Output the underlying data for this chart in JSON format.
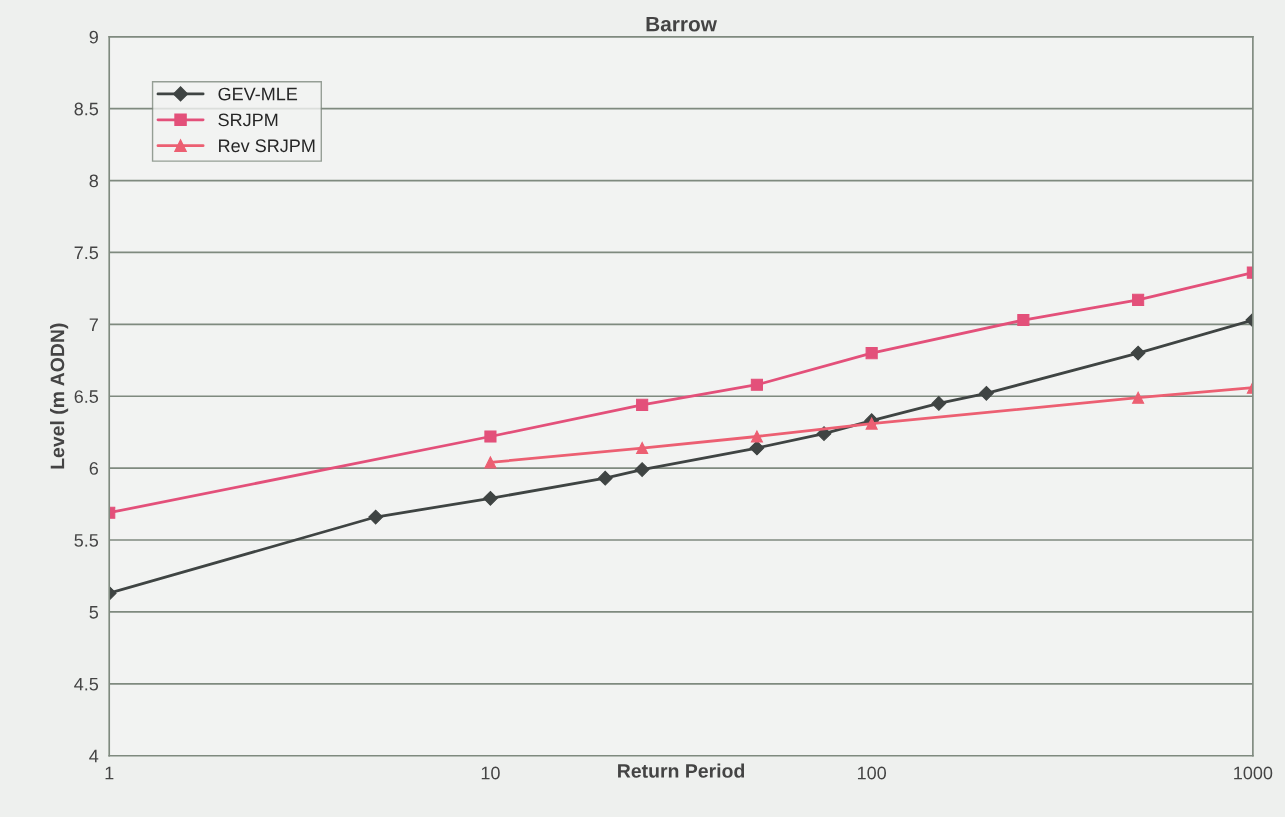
{
  "chart_data": {
    "type": "line",
    "title": "Barrow",
    "xlabel": "Return Period",
    "ylabel": "Level (m AODN)",
    "log": "x",
    "xlim": [
      1,
      1000
    ],
    "xticks": [
      1,
      10,
      100,
      1000
    ],
    "ylim": [
      4,
      9
    ],
    "yticks": [
      4,
      4.5,
      5,
      5.5,
      6,
      6.5,
      7,
      7.5,
      8,
      8.5,
      9
    ],
    "grid": "y",
    "legend": "top left",
    "line_style": "solid",
    "series": [
      {
        "name": "GEV-MLE",
        "color": "#3f4443",
        "marker": "diamond",
        "x": [
          1,
          5,
          10,
          20,
          25,
          50,
          75,
          100,
          150,
          200,
          500,
          1000
        ],
        "values": [
          5.13,
          5.66,
          5.79,
          5.93,
          5.99,
          6.14,
          6.24,
          6.33,
          6.45,
          6.52,
          6.8,
          7.03
        ]
      },
      {
        "name": "SRJPM",
        "color": "#e3507a",
        "marker": "square",
        "x": [
          1,
          10,
          25,
          50,
          100,
          250,
          500,
          1000
        ],
        "values": [
          5.69,
          6.22,
          6.44,
          6.58,
          6.8,
          7.03,
          7.17,
          7.36
        ]
      },
      {
        "name": "Rev SRJPM",
        "color": "#ec5f72",
        "marker": "triangle",
        "x": [
          10,
          25,
          50,
          100,
          500,
          1000
        ],
        "values": [
          6.04,
          6.14,
          6.22,
          6.31,
          6.49,
          6.56
        ]
      }
    ]
  }
}
